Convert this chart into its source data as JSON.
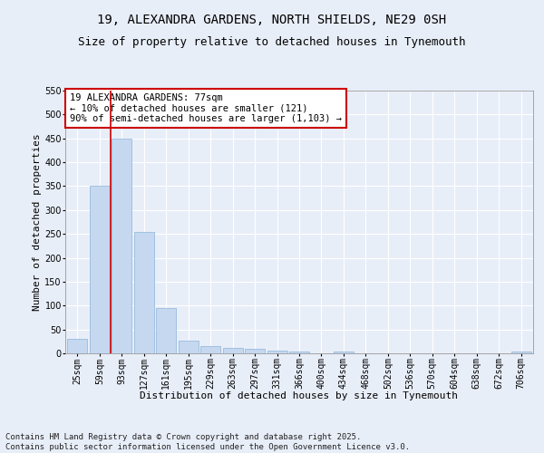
{
  "title1": "19, ALEXANDRA GARDENS, NORTH SHIELDS, NE29 0SH",
  "title2": "Size of property relative to detached houses in Tynemouth",
  "xlabel": "Distribution of detached houses by size in Tynemouth",
  "ylabel": "Number of detached properties",
  "categories": [
    "25sqm",
    "59sqm",
    "93sqm",
    "127sqm",
    "161sqm",
    "195sqm",
    "229sqm",
    "263sqm",
    "297sqm",
    "331sqm",
    "366sqm",
    "400sqm",
    "434sqm",
    "468sqm",
    "502sqm",
    "536sqm",
    "570sqm",
    "604sqm",
    "638sqm",
    "672sqm",
    "706sqm"
  ],
  "values": [
    30,
    350,
    450,
    255,
    95,
    26,
    15,
    11,
    9,
    5,
    4,
    0,
    3,
    0,
    0,
    0,
    0,
    0,
    0,
    0,
    3
  ],
  "bar_color": "#c5d8f0",
  "bar_edge_color": "#8ab4d8",
  "vline_color": "#cc0000",
  "annotation_text": "19 ALEXANDRA GARDENS: 77sqm\n← 10% of detached houses are smaller (121)\n90% of semi-detached houses are larger (1,103) →",
  "annotation_box_color": "#ffffff",
  "annotation_box_edge": "#cc0000",
  "ylim": [
    0,
    550
  ],
  "yticks": [
    0,
    50,
    100,
    150,
    200,
    250,
    300,
    350,
    400,
    450,
    500,
    550
  ],
  "background_color": "#e8eef8",
  "grid_color": "#ffffff",
  "footer": "Contains HM Land Registry data © Crown copyright and database right 2025.\nContains public sector information licensed under the Open Government Licence v3.0.",
  "title_fontsize": 10,
  "subtitle_fontsize": 9,
  "axis_label_fontsize": 8,
  "tick_fontsize": 7,
  "annotation_fontsize": 7.5,
  "footer_fontsize": 6.5
}
